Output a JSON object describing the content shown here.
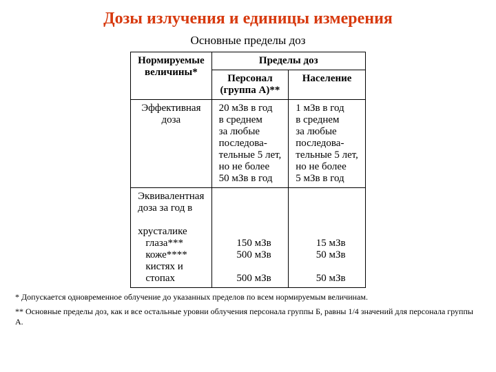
{
  "title": "Дозы излучения и единицы измерения",
  "subtitle": "Основные пределы доз",
  "table": {
    "header": {
      "col1": "Нормируемые\nвеличины*",
      "col2": "Пределы доз",
      "sub1": "Персонал\n(группа А)**",
      "sub2": "Население"
    },
    "rows": [
      {
        "label": "Эффективная\nдоза",
        "personnel": "20 мЗв в год\nв среднем\nза любые\nпоследова-\nтельные 5 лет,\nно не более\n50 мЗв в год",
        "population": "1 мЗв в год\nв среднем\nза любые\nпоследова-\nтельные 5 лет,\nно не более\n5 мЗв в год"
      },
      {
        "label": "Эквивалентная\nдоза за год в\n\nхрусталике\n   глаза***\n   коже****\n   кистях и\n   стопах",
        "personnel": "\n\n\n\n   150 мЗв\n   500 мЗв\n\n   500 мЗв",
        "population": "\n\n\n\n   15 мЗв\n   50 мЗв\n\n   50 мЗв"
      }
    ]
  },
  "notes": {
    "star1": "* Допускается одновременное облучение до указанных пределов по всем нормируемым величинам.",
    "star2": "** Основные пределы доз, как и все остальные уровни облучения персонала группы Б, равны 1/4 значений для персонала группы А."
  },
  "colors": {
    "title": "#d73a0f",
    "text": "#000000",
    "background": "#ffffff",
    "border": "#000000"
  },
  "font": {
    "family": "Times New Roman",
    "title_size": 24,
    "body_size": 15,
    "note_size": 12
  }
}
